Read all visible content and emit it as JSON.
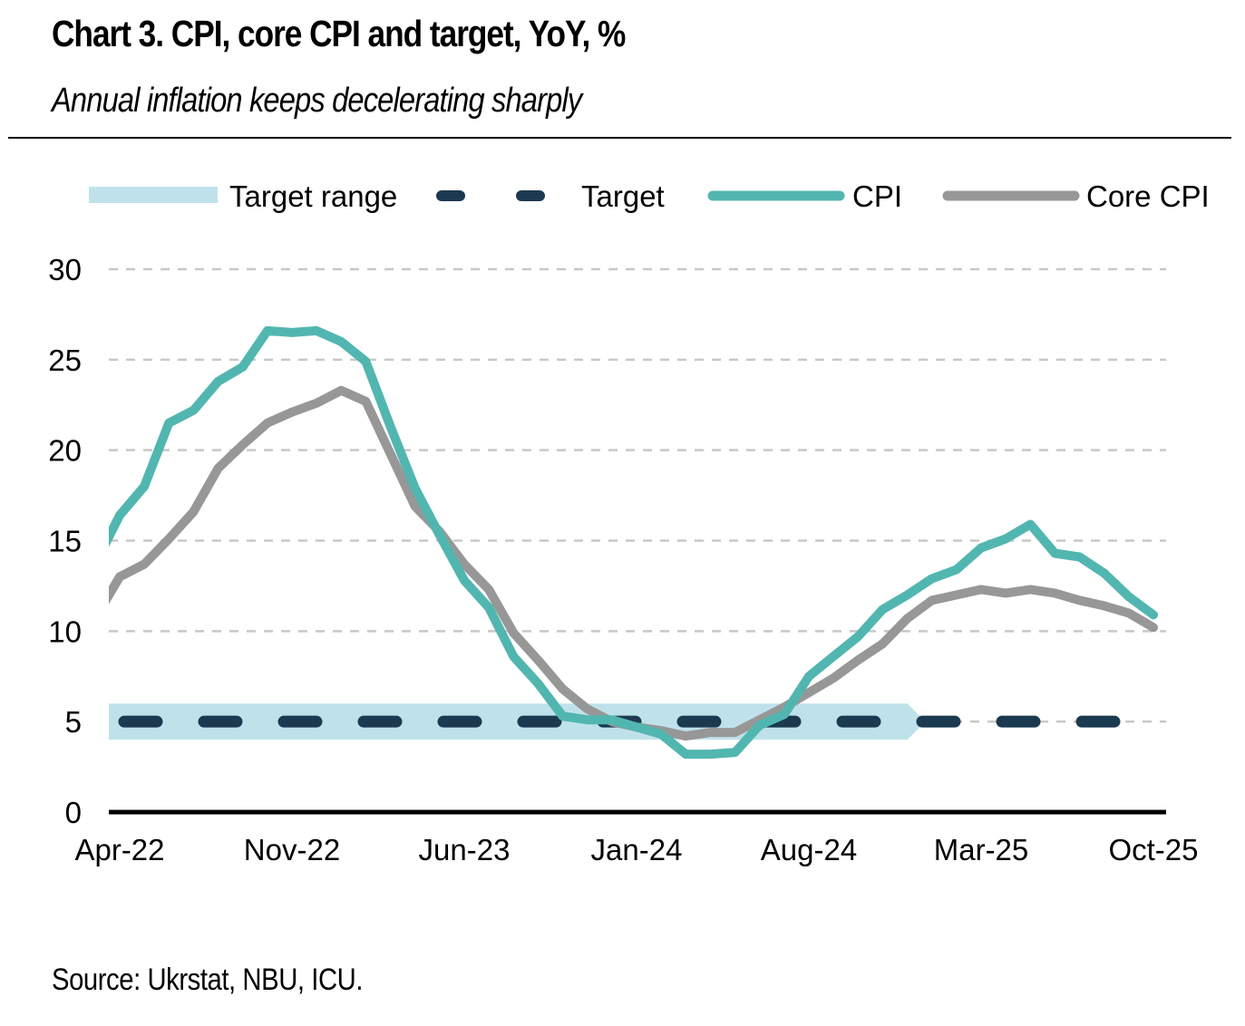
{
  "header": {
    "title": "Chart 3. CPI, core CPI and target, YoY, %",
    "subtitle": "Annual inflation keeps decelerating sharply"
  },
  "footer": {
    "source": "Source: Ukrstat, NBU, ICU."
  },
  "colors": {
    "cpi": "#52b6b0",
    "core_cpi": "#979797",
    "target": "#1b3a50",
    "target_range": "#bfe2ea",
    "grid": "#c8c8c8",
    "axis": "#000000"
  },
  "chart_data": {
    "type": "line",
    "title": "Chart 3. CPI, core CPI and target, YoY, %",
    "subtitle": "Annual inflation keeps decelerating sharply",
    "xlabel": "",
    "ylabel": "",
    "ylim": [
      0,
      30
    ],
    "yticks": [
      0,
      5,
      10,
      15,
      20,
      25,
      30
    ],
    "grid": true,
    "legend_position": "top",
    "x_tick_labels": [
      "Apr-22",
      "Nov-22",
      "Jun-23",
      "Jan-24",
      "Aug-24",
      "Mar-25",
      "Oct-25"
    ],
    "x": [
      "Mar-22",
      "Apr-22",
      "May-22",
      "Jun-22",
      "Jul-22",
      "Aug-22",
      "Sep-22",
      "Oct-22",
      "Nov-22",
      "Dec-22",
      "Jan-23",
      "Feb-23",
      "Mar-23",
      "Apr-23",
      "May-23",
      "Jun-23",
      "Jul-23",
      "Aug-23",
      "Sep-23",
      "Oct-23",
      "Nov-23",
      "Dec-23",
      "Jan-24",
      "Feb-24",
      "Mar-24",
      "Apr-24",
      "May-24",
      "Jun-24",
      "Jul-24",
      "Aug-24",
      "Sep-24",
      "Oct-24",
      "Nov-24",
      "Dec-24",
      "Jan-25",
      "Feb-25",
      "Mar-25",
      "Apr-25",
      "May-25",
      "Jun-25",
      "Jul-25",
      "Aug-25",
      "Sep-25",
      "Oct-25"
    ],
    "series": [
      {
        "name": "Target range",
        "kind": "band",
        "low": 4,
        "high": 6,
        "from": "Mar-22",
        "to": "Dec-24"
      },
      {
        "name": "Target",
        "kind": "dashed",
        "value": 5,
        "from": "Mar-22",
        "to": "Sep-25"
      },
      {
        "name": "CPI",
        "kind": "line",
        "values": [
          13.7,
          16.4,
          18.0,
          21.5,
          22.2,
          23.8,
          24.6,
          26.6,
          26.5,
          26.6,
          26.0,
          24.9,
          21.3,
          17.9,
          15.3,
          12.8,
          11.3,
          8.6,
          7.1,
          5.3,
          5.1,
          5.1,
          4.7,
          4.3,
          3.2,
          3.2,
          3.3,
          4.8,
          5.4,
          7.5,
          8.6,
          9.7,
          11.2,
          12.0,
          12.9,
          13.4,
          14.6,
          15.1,
          15.9,
          14.3,
          14.1,
          13.2,
          11.9,
          10.9
        ]
      },
      {
        "name": "Core CPI",
        "kind": "line",
        "values": [
          10.7,
          13.0,
          13.7,
          15.1,
          16.6,
          19.0,
          20.3,
          21.5,
          22.1,
          22.6,
          23.3,
          22.7,
          19.8,
          16.9,
          15.5,
          13.7,
          12.3,
          9.9,
          8.4,
          6.8,
          5.7,
          5.0,
          4.7,
          4.5,
          4.2,
          4.4,
          4.4,
          5.1,
          5.8,
          6.6,
          7.4,
          8.4,
          9.3,
          10.7,
          11.7,
          12.0,
          12.3,
          12.1,
          12.3,
          12.1,
          11.7,
          11.4,
          11.0,
          10.2
        ]
      }
    ]
  },
  "legend": {
    "items": [
      {
        "label": "Target range",
        "key": "target_range"
      },
      {
        "label": "Target",
        "key": "target"
      },
      {
        "label": "CPI",
        "key": "cpi"
      },
      {
        "label": "Core CPI",
        "key": "core_cpi"
      }
    ]
  }
}
